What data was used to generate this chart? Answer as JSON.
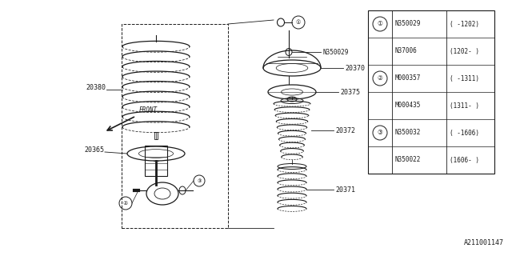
{
  "part_number_bottom": "A211001147",
  "bg_color": "#ffffff",
  "line_color": "#1a1a1a",
  "table_rows": [
    [
      "N350029",
      "( -1202)"
    ],
    [
      "N37006",
      "(1202- )"
    ],
    [
      "M000357",
      "( -1311)"
    ],
    [
      "M000435",
      "(1311- )"
    ],
    [
      "N350032",
      "( -1606)"
    ],
    [
      "N350022",
      "(1606- )"
    ]
  ],
  "layout": {
    "fig_w": 6.4,
    "fig_h": 3.2,
    "dpi": 100,
    "xmin": 0,
    "xmax": 640,
    "ymin": 0,
    "ymax": 320
  }
}
